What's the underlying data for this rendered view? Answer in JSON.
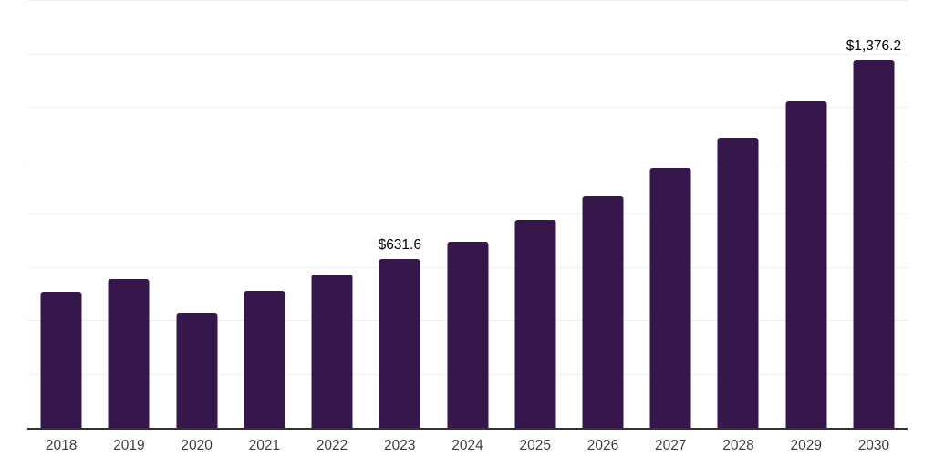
{
  "chart_data": {
    "type": "bar",
    "title": "",
    "categories": [
      "2018",
      "2019",
      "2020",
      "2021",
      "2022",
      "2023",
      "2024",
      "2025",
      "2026",
      "2027",
      "2028",
      "2029",
      "2030"
    ],
    "values": [
      508,
      559,
      432,
      513,
      574,
      631.6,
      697,
      781,
      870,
      973,
      1087,
      1224,
      1376.2
    ],
    "data_labels": {
      "2023": "$631.6",
      "2030": "$1,376.2"
    },
    "xlabel": "",
    "ylabel": "",
    "ylim": [
      0,
      1600
    ],
    "gridline_step": 200,
    "grid": "horizontal",
    "legend": "none",
    "bar_color": "#36174c",
    "axis_color": "#333333",
    "gridline_color": "#f0f0f1",
    "tick_label_color": "#3d3d3d",
    "value_label_color": "#000000"
  }
}
